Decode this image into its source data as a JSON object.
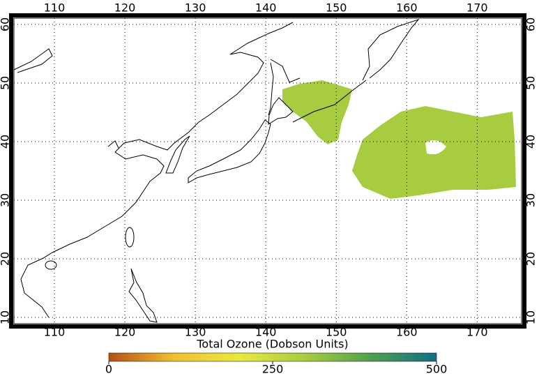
{
  "map": {
    "xlim": [
      104.26,
      176.3
    ],
    "ylim": [
      8.93,
      61.07
    ],
    "xticks": [
      110,
      120,
      130,
      140,
      150,
      160,
      170
    ],
    "yticks": [
      10,
      20,
      30,
      40,
      50,
      60
    ],
    "grid": true
  },
  "colorbar": {
    "title": "Total Ozone (Dobson Units)",
    "lim": [
      0,
      500
    ],
    "ticks": [
      0,
      250,
      500
    ],
    "colors": [
      "#b5501a",
      "#f0c030",
      "#e8e840",
      "#a8cc40",
      "#50a050",
      "#106e88"
    ]
  }
}
